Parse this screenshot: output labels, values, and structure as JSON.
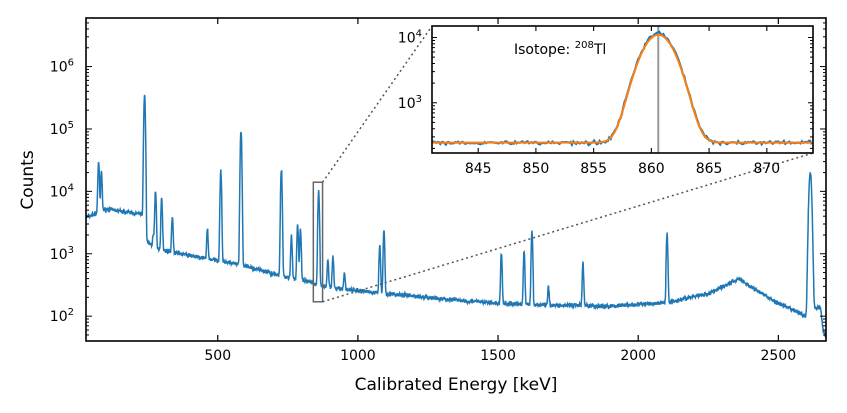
{
  "chart_data": [
    {
      "type": "line",
      "xlabel": "Calibrated Energy [keV]",
      "ylabel": "Counts",
      "x_ticks": [
        500,
        1000,
        1500,
        2000,
        2500
      ],
      "y_ticks": [
        100,
        1000,
        10000,
        100000,
        1000000
      ],
      "y_tick_exponents": [
        "2",
        "3",
        "4",
        "5",
        "6"
      ],
      "y_scale": "log",
      "xlim": [
        30,
        2670
      ],
      "ylim": [
        40,
        6000000
      ],
      "series_color": "#1f77b4",
      "baseline": [
        [
          30,
          3800
        ],
        [
          100,
          5200
        ],
        [
          230,
          4300
        ],
        [
          240,
          1600
        ],
        [
          300,
          1150
        ],
        [
          420,
          900
        ],
        [
          560,
          700
        ],
        [
          700,
          480
        ],
        [
          900,
          290
        ],
        [
          1100,
          230
        ],
        [
          1300,
          190
        ],
        [
          1500,
          160
        ],
        [
          1700,
          150
        ],
        [
          1900,
          145
        ],
        [
          2100,
          165
        ],
        [
          2250,
          230
        ],
        [
          2360,
          400
        ],
        [
          2400,
          300
        ],
        [
          2500,
          160
        ],
        [
          2580,
          110
        ],
        [
          2600,
          95
        ],
        [
          2630,
          130
        ],
        [
          2650,
          140
        ],
        [
          2660,
          60
        ],
        [
          2670,
          45
        ]
      ],
      "peaks": [
        {
          "energy": 75,
          "counts": 30000
        },
        {
          "energy": 85,
          "counts": 20000
        },
        {
          "energy": 135,
          "counts": 5000
        },
        {
          "energy": 239,
          "counts": 360000
        },
        {
          "energy": 270,
          "counts": 2000
        },
        {
          "energy": 278,
          "counts": 10000
        },
        {
          "energy": 300,
          "counts": 8000
        },
        {
          "energy": 338,
          "counts": 4000
        },
        {
          "energy": 463,
          "counts": 2500
        },
        {
          "energy": 511,
          "counts": 21000
        },
        {
          "energy": 583,
          "counts": 90000
        },
        {
          "energy": 727,
          "counts": 22000
        },
        {
          "energy": 763,
          "counts": 2000
        },
        {
          "energy": 785,
          "counts": 3000
        },
        {
          "energy": 795,
          "counts": 2500
        },
        {
          "energy": 860,
          "counts": 10000
        },
        {
          "energy": 893,
          "counts": 800
        },
        {
          "energy": 911,
          "counts": 900
        },
        {
          "energy": 952,
          "counts": 500
        },
        {
          "energy": 1078,
          "counts": 1400
        },
        {
          "energy": 1093,
          "counts": 2400
        },
        {
          "energy": 1512,
          "counts": 1000
        },
        {
          "energy": 1593,
          "counts": 1100
        },
        {
          "energy": 1621,
          "counts": 2300
        },
        {
          "energy": 1680,
          "counts": 300
        },
        {
          "energy": 1803,
          "counts": 700
        },
        {
          "energy": 2103,
          "counts": 2100
        },
        {
          "energy": 2614,
          "counts": 20000
        }
      ],
      "zoom_box": {
        "x": [
          841,
          874
        ],
        "y": [
          170,
          14000
        ]
      }
    },
    {
      "type": "line",
      "annotation_text": "Isotope: ",
      "annotation_isotope_mass": "208",
      "annotation_isotope_symbol": "Tl",
      "x_ticks": [
        845,
        850,
        855,
        860,
        865,
        870
      ],
      "y_ticks": [
        1000,
        10000
      ],
      "y_tick_exponents": [
        "3",
        "4"
      ],
      "y_scale": "log",
      "xlim": [
        841,
        874
      ],
      "ylim": [
        170,
        15000
      ],
      "marker_line_energy": 860.6,
      "series": [
        {
          "name": "",
          "color": "#1f77b4",
          "peak_energy": 860.6,
          "peak_counts": 11500,
          "background": 245
        },
        {
          "name": "",
          "color": "#ff7f0e",
          "peak_energy": 860.6,
          "peak_counts": 11000,
          "background": 245
        }
      ]
    }
  ]
}
